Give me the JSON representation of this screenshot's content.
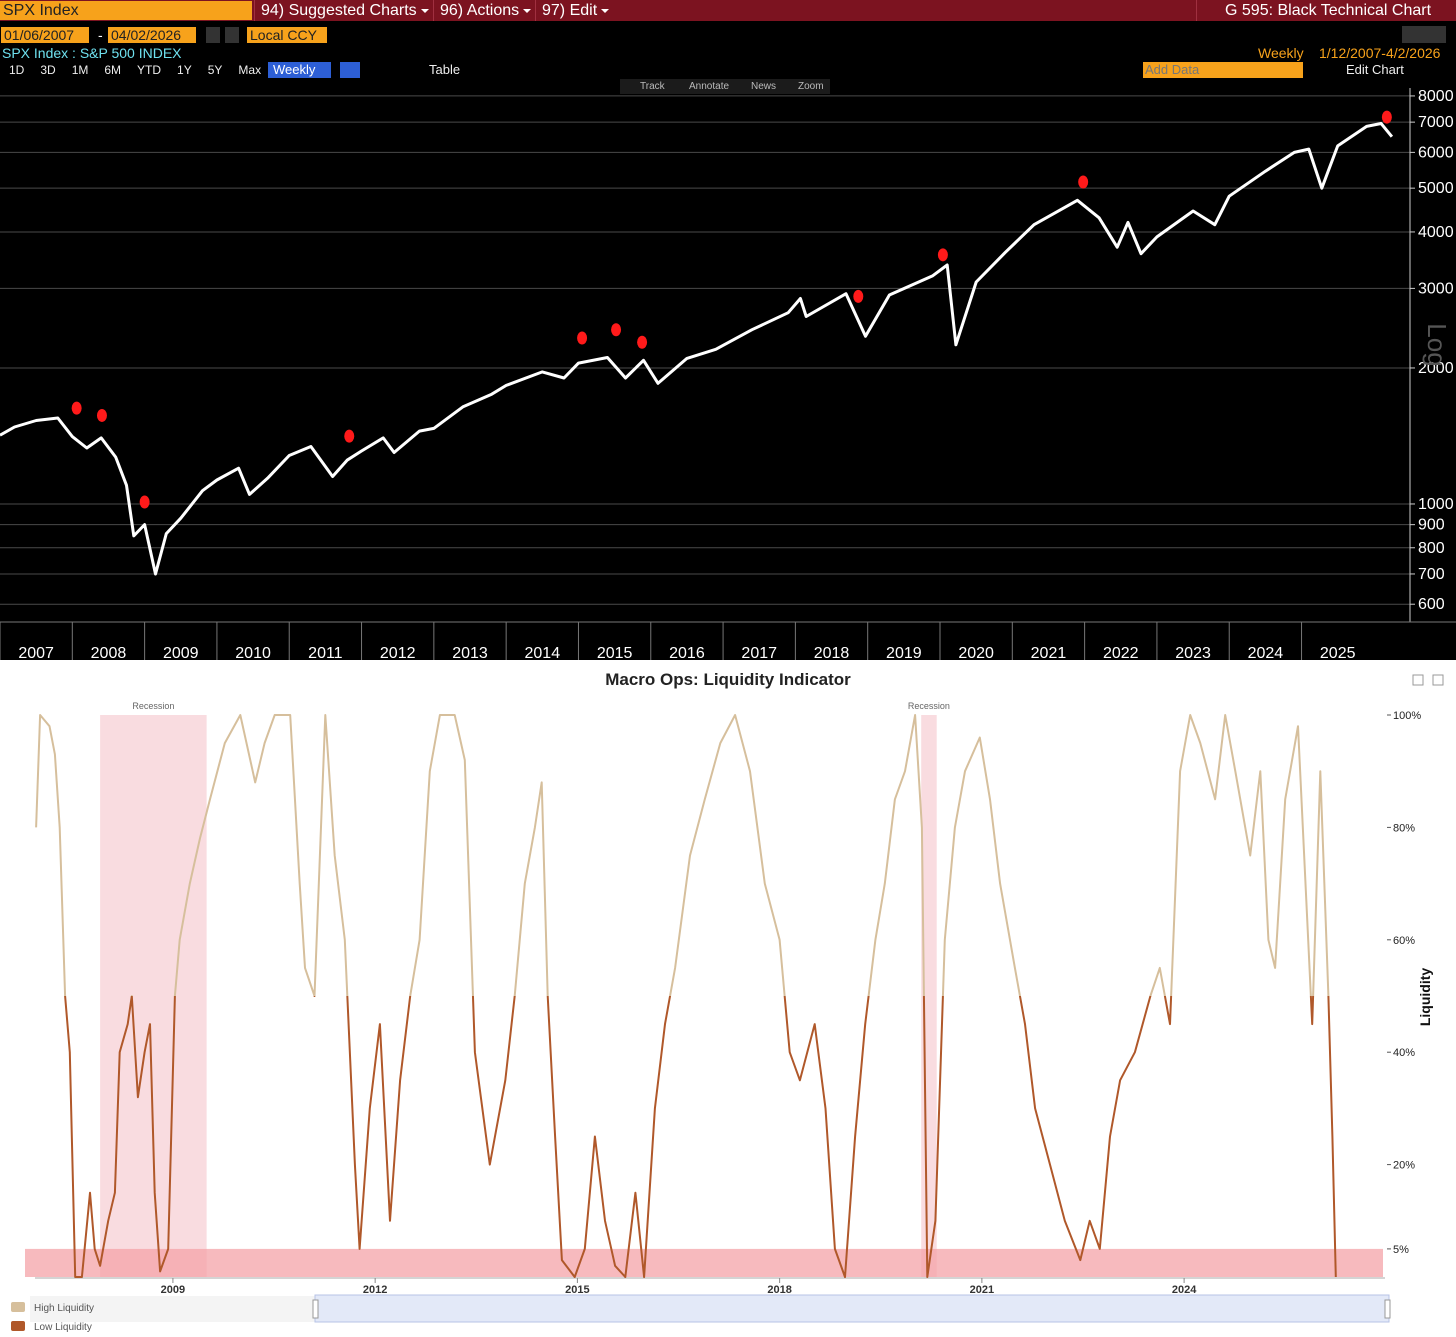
{
  "toolbar": {
    "ticker": "SPX Index",
    "menus": [
      "94) Suggested Charts",
      "96) Actions",
      "97) Edit"
    ],
    "chart_name": "G 595: Black Technical Chart",
    "start_date": "01/06/2007",
    "end_date": "04/02/2026",
    "date_sep": "-",
    "currency": "Local CCY",
    "security": "SPX Index : S&P 500 INDEX",
    "frequency": "Weekly",
    "range": "1/12/2007-4/2/2026",
    "periods": [
      "1D",
      "3D",
      "1M",
      "6M",
      "YTD",
      "1Y",
      "5Y",
      "Max"
    ],
    "period_selected": "Weekly",
    "table": "Table",
    "add_data": "Add Data",
    "edit_chart": "Edit Chart",
    "tools": [
      "Track",
      "Annotate",
      "News",
      "Zoom"
    ]
  },
  "chart_data": [
    {
      "type": "line",
      "log_scale": true,
      "axis_label": "Log",
      "color": "#ffffff",
      "x": [
        2007.0,
        2007.2,
        2007.5,
        2007.8,
        2008.0,
        2008.2,
        2008.4,
        2008.6,
        2008.75,
        2008.85,
        2009.0,
        2009.15,
        2009.3,
        2009.5,
        2009.8,
        2010.0,
        2010.3,
        2010.45,
        2010.7,
        2011.0,
        2011.3,
        2011.6,
        2011.8,
        2012.0,
        2012.3,
        2012.45,
        2012.8,
        2013.0,
        2013.4,
        2013.8,
        2014.0,
        2014.5,
        2014.8,
        2015.0,
        2015.4,
        2015.65,
        2015.9,
        2016.1,
        2016.5,
        2016.9,
        2017.4,
        2017.9,
        2018.07,
        2018.15,
        2018.7,
        2018.97,
        2019.3,
        2019.9,
        2020.1,
        2020.22,
        2020.5,
        2020.9,
        2021.3,
        2021.9,
        2022.2,
        2022.45,
        2022.6,
        2022.78,
        2023.0,
        2023.5,
        2023.8,
        2024.0,
        2024.5,
        2024.9,
        2025.1,
        2025.28,
        2025.5,
        2025.9,
        2026.1,
        2026.25
      ],
      "values": [
        1420,
        1480,
        1530,
        1550,
        1410,
        1330,
        1400,
        1270,
        1100,
        850,
        900,
        700,
        860,
        930,
        1070,
        1130,
        1200,
        1050,
        1140,
        1280,
        1340,
        1150,
        1250,
        1310,
        1400,
        1300,
        1450,
        1470,
        1640,
        1750,
        1830,
        1960,
        1900,
        2050,
        2110,
        1900,
        2080,
        1850,
        2100,
        2200,
        2430,
        2650,
        2850,
        2600,
        2920,
        2350,
        2900,
        3200,
        3380,
        2250,
        3100,
        3600,
        4150,
        4700,
        4300,
        3700,
        4200,
        3580,
        3900,
        4450,
        4150,
        4800,
        5450,
        6000,
        6100,
        5000,
        6200,
        6850,
        6950,
        6500
      ],
      "markers": {
        "color": "#ff1a1a",
        "x": [
          2008.06,
          2008.41,
          2009.0,
          2011.83,
          2015.05,
          2015.52,
          2015.88,
          2018.87,
          2020.04,
          2021.98,
          2026.18
        ],
        "values": [
          1630,
          1570,
          1010,
          1413,
          2330,
          2430,
          2280,
          2880,
          3560,
          5160,
          7180
        ]
      },
      "xlim": [
        2007,
        2026.5
      ],
      "xticks": [
        2007,
        2008,
        2009,
        2010,
        2011,
        2012,
        2013,
        2014,
        2015,
        2016,
        2017,
        2018,
        2019,
        2020,
        2021,
        2022,
        2023,
        2024,
        2025
      ],
      "ylim": [
        548,
        8330
      ],
      "yticks": [
        600,
        700,
        800,
        900,
        1000,
        2000,
        3000,
        4000,
        5000,
        6000,
        7000,
        8000
      ],
      "grid": true
    },
    {
      "type": "line",
      "title": "Macro Ops: Liquidity Indicator",
      "y_label": "Liquidity",
      "threshold": 50,
      "series": [
        {
          "name": "High Liquidity",
          "color": "#d6bf9c"
        },
        {
          "name": "Low Liquidity",
          "color": "#b0582a"
        }
      ],
      "x": [
        2006.97,
        2007.03,
        2007.17,
        2007.25,
        2007.32,
        2007.4,
        2007.47,
        2007.55,
        2007.65,
        2007.77,
        2007.84,
        2007.92,
        2008.04,
        2008.14,
        2008.21,
        2008.33,
        2008.39,
        2008.48,
        2008.58,
        2008.66,
        2008.73,
        2008.81,
        2008.93,
        2009.03,
        2009.1,
        2009.25,
        2009.4,
        2009.55,
        2009.77,
        2010.0,
        2010.22,
        2010.36,
        2010.51,
        2010.74,
        2010.88,
        2010.96,
        2011.1,
        2011.26,
        2011.4,
        2011.55,
        2011.7,
        2011.77,
        2011.92,
        2012.07,
        2012.22,
        2012.37,
        2012.52,
        2012.66,
        2012.81,
        2012.96,
        2013.18,
        2013.33,
        2013.48,
        2013.7,
        2013.93,
        2014.07,
        2014.22,
        2014.37,
        2014.47,
        2014.56,
        2014.67,
        2014.77,
        2014.96,
        2015.11,
        2015.26,
        2015.41,
        2015.56,
        2015.71,
        2015.86,
        2015.99,
        2016.15,
        2016.3,
        2016.45,
        2016.67,
        2016.89,
        2017.12,
        2017.34,
        2017.56,
        2017.78,
        2018.0,
        2018.15,
        2018.3,
        2018.52,
        2018.68,
        2018.82,
        2018.97,
        2019.12,
        2019.27,
        2019.42,
        2019.56,
        2019.71,
        2019.86,
        2020.01,
        2020.11,
        2020.19,
        2020.31,
        2020.45,
        2020.6,
        2020.75,
        2020.97,
        2021.12,
        2021.27,
        2021.49,
        2021.64,
        2021.79,
        2022.01,
        2022.23,
        2022.46,
        2022.6,
        2022.75,
        2022.9,
        2023.05,
        2023.27,
        2023.5,
        2023.64,
        2023.79,
        2023.94,
        2024.09,
        2024.24,
        2024.46,
        2024.61,
        2024.76,
        2024.98,
        2025.13,
        2025.25,
        2025.35,
        2025.5,
        2025.69,
        2025.8,
        2025.9,
        2026.02,
        2026.14,
        2026.2,
        2026.25
      ],
      "values": [
        80,
        100,
        98,
        93,
        80,
        50,
        40,
        0,
        0,
        15,
        5,
        2,
        10,
        15,
        40,
        45,
        50,
        32,
        40,
        45,
        15,
        1,
        5,
        50,
        60,
        70,
        78,
        85,
        95,
        100,
        88,
        95,
        100,
        100,
        70,
        55,
        50,
        100,
        75,
        60,
        20,
        5,
        30,
        45,
        10,
        35,
        50,
        60,
        90,
        100,
        100,
        92,
        40,
        20,
        35,
        50,
        70,
        80,
        88,
        50,
        25,
        3,
        0,
        5,
        25,
        10,
        2,
        0,
        15,
        0,
        30,
        45,
        55,
        75,
        85,
        95,
        100,
        90,
        70,
        60,
        40,
        35,
        45,
        30,
        5,
        0,
        25,
        45,
        60,
        70,
        85,
        90,
        100,
        80,
        0,
        10,
        60,
        80,
        90,
        96,
        85,
        70,
        55,
        45,
        30,
        20,
        10,
        3,
        10,
        5,
        25,
        35,
        40,
        50,
        55,
        45,
        90,
        100,
        95,
        85,
        100,
        90,
        75,
        90,
        60,
        55,
        85,
        98,
        70,
        45,
        90,
        50,
        25,
        0
      ],
      "recessions": [
        {
          "label": "Recession",
          "from": 2007.92,
          "to": 2009.5
        },
        {
          "label": "Recession",
          "from": 2020.1,
          "to": 2020.33
        }
      ],
      "band": [
        0,
        5
      ],
      "band_color": "#f4a3a8",
      "xlim": [
        2006.88,
        2026.98
      ],
      "xticks": [
        2009,
        2012,
        2015,
        2018,
        2021,
        2024
      ],
      "ylim": [
        0,
        100
      ],
      "yticks": [
        {
          "value": 100,
          "label": "100%"
        },
        {
          "value": 80,
          "label": "80%"
        },
        {
          "value": 60,
          "label": "60%"
        },
        {
          "value": 40,
          "label": "40%"
        },
        {
          "value": 20,
          "label": "20%"
        },
        {
          "value": 5,
          "label": "5%"
        }
      ]
    }
  ]
}
